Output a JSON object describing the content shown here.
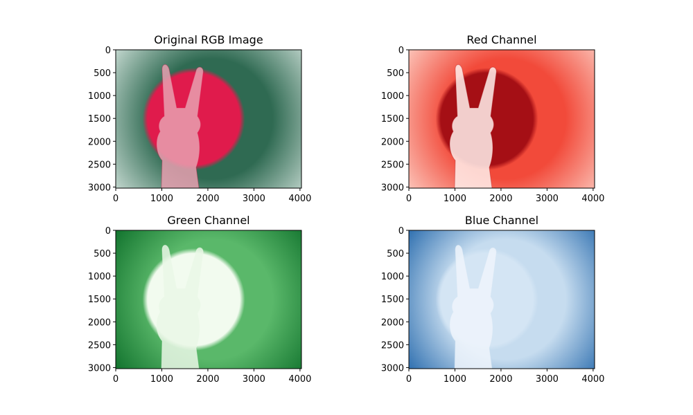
{
  "chart_data": [
    {
      "type": "image",
      "title": "Original RGB Image",
      "channel": "rgb",
      "xlim": [
        0,
        4032
      ],
      "ylim": [
        3024,
        0
      ],
      "xticks": [
        "0",
        "1000",
        "2000",
        "3000",
        "4000"
      ],
      "yticks": [
        "0",
        "500",
        "1000",
        "1500",
        "2000",
        "2500",
        "3000"
      ],
      "colors": {
        "background_center": "#2f6a52",
        "background_edge": "#e6f1ec",
        "circle": "#e01b4c",
        "hand": "#e8a0b0"
      }
    },
    {
      "type": "image",
      "title": "Red Channel",
      "channel": "red",
      "colormap": "Reds",
      "xlim": [
        0,
        4032
      ],
      "ylim": [
        3024,
        0
      ],
      "xticks": [
        "0",
        "1000",
        "2000",
        "3000",
        "4000"
      ],
      "yticks": [
        "0",
        "500",
        "1000",
        "1500",
        "2000",
        "2500",
        "3000"
      ],
      "colors": {
        "background_center": "#f24a3a",
        "background_edge": "#fde0d6",
        "circle": "#a50f15",
        "hand": "#fff0ec"
      }
    },
    {
      "type": "image",
      "title": "Green Channel",
      "channel": "green",
      "colormap": "Greens",
      "xlim": [
        0,
        4032
      ],
      "ylim": [
        3024,
        0
      ],
      "xticks": [
        "0",
        "1000",
        "2000",
        "3000",
        "4000"
      ],
      "yticks": [
        "0",
        "500",
        "1000",
        "1500",
        "2000",
        "2500",
        "3000"
      ],
      "colors": {
        "background_center": "#5ab86a",
        "background_edge": "#00621f",
        "circle": "#f2fbef",
        "hand": "#eaf7e6"
      }
    },
    {
      "type": "image",
      "title": "Blue Channel",
      "channel": "blue",
      "colormap": "Blues",
      "xlim": [
        0,
        4032
      ],
      "ylim": [
        3024,
        0
      ],
      "xticks": [
        "0",
        "1000",
        "2000",
        "3000",
        "4000"
      ],
      "yticks": [
        "0",
        "500",
        "1000",
        "1500",
        "2000",
        "2500",
        "3000"
      ],
      "colors": {
        "background_center": "#c6dcef",
        "background_edge": "#0a55a0",
        "circle": "#d4e5f4",
        "hand": "#eef5fc"
      }
    }
  ]
}
